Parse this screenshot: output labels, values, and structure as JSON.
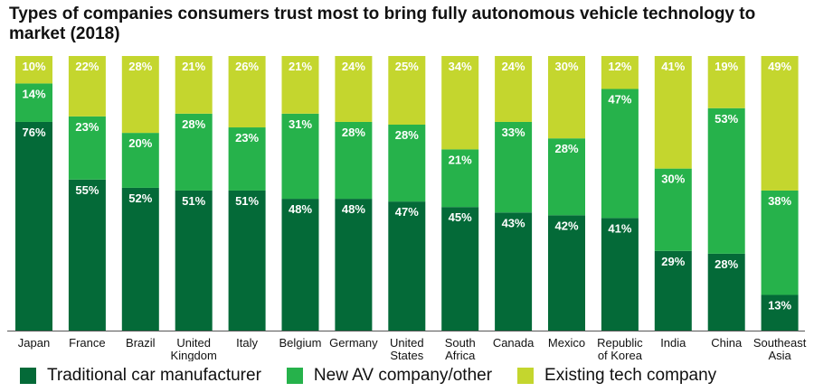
{
  "chart_data": {
    "type": "bar",
    "stacked": true,
    "percent_stacked": true,
    "title": "Types of companies consumers trust most to bring fully autonomous vehicle technology to market (2018)",
    "categories": [
      "Japan",
      "France",
      "Brazil",
      "United Kingdom",
      "Italy",
      "Belgium",
      "Germany",
      "United States",
      "South Africa",
      "Canada",
      "Mexico",
      "Republic of Korea",
      "India",
      "China",
      "Southeast Asia"
    ],
    "category_labels": [
      [
        "Japan"
      ],
      [
        "France"
      ],
      [
        "Brazil"
      ],
      [
        "United",
        "Kingdom"
      ],
      [
        "Italy"
      ],
      [
        "Belgium"
      ],
      [
        "Germany"
      ],
      [
        "United",
        "States"
      ],
      [
        "South",
        "Africa"
      ],
      [
        "Canada"
      ],
      [
        "Mexico"
      ],
      [
        "Republic",
        "of Korea"
      ],
      [
        "India"
      ],
      [
        "China"
      ],
      [
        "Southeast",
        "Asia"
      ]
    ],
    "series": [
      {
        "name": "Traditional car manufacturer",
        "color": "#046a38",
        "values": [
          76,
          55,
          52,
          51,
          51,
          48,
          48,
          47,
          45,
          43,
          42,
          41,
          29,
          28,
          13
        ]
      },
      {
        "name": "New AV company/other",
        "color": "#26b24b",
        "values": [
          14,
          23,
          20,
          28,
          23,
          31,
          28,
          28,
          21,
          33,
          28,
          47,
          30,
          53,
          38
        ]
      },
      {
        "name": "Existing tech company",
        "color": "#c4d62e",
        "values": [
          10,
          22,
          28,
          21,
          26,
          21,
          24,
          25,
          34,
          24,
          30,
          12,
          41,
          19,
          49
        ]
      }
    ],
    "value_suffix": "%",
    "ylim": [
      0,
      100
    ],
    "legend_position": "bottom",
    "grid": false
  }
}
